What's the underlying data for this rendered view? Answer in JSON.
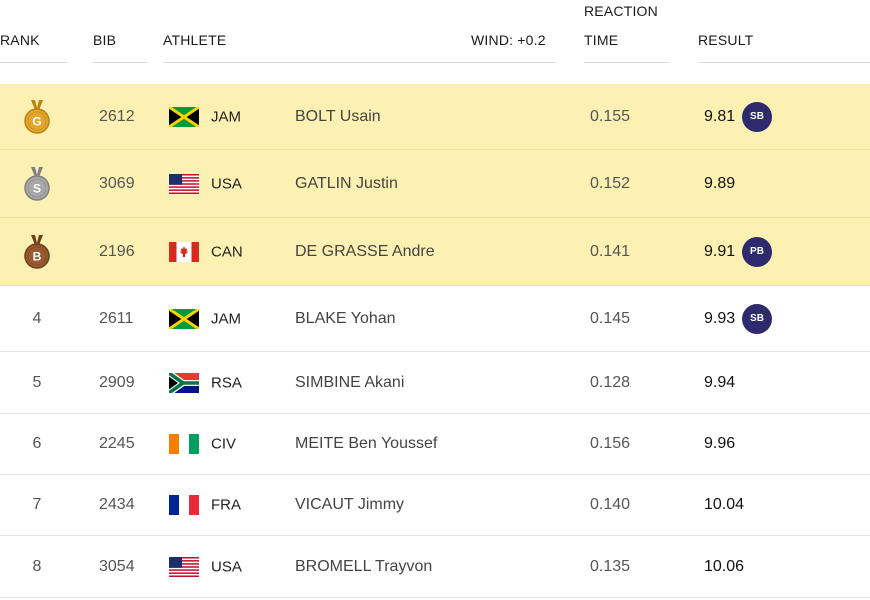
{
  "header": {
    "rank": "RANK",
    "bib": "BIB",
    "athlete": "ATHLETE",
    "wind": "WIND: +0.2",
    "reaction_line1": "REACTION",
    "reaction_line2": "TIME",
    "result": "RESULT"
  },
  "colors": {
    "medal_row_bg": "#fdf0b3",
    "badge_bg": "#2d2a6e",
    "gold": "#e3a52b",
    "silver": "#a8a8a8",
    "bronze": "#9a5a2f"
  },
  "rows": [
    {
      "rank": "",
      "medal": "gold",
      "medal_letter": "G",
      "bib": "2612",
      "flag": "jam-flag-icon",
      "country": "JAM",
      "athlete": "BOLT Usain",
      "reaction": "0.155",
      "result": "9.81",
      "badge": "SB"
    },
    {
      "rank": "",
      "medal": "silver",
      "medal_letter": "S",
      "bib": "3069",
      "flag": "usa-flag-icon",
      "country": "USA",
      "athlete": "GATLIN Justin",
      "reaction": "0.152",
      "result": "9.89",
      "badge": ""
    },
    {
      "rank": "",
      "medal": "bronze",
      "medal_letter": "B",
      "bib": "2196",
      "flag": "can-flag-icon",
      "country": "CAN",
      "athlete": "DE GRASSE Andre",
      "reaction": "0.141",
      "result": "9.91",
      "badge": "PB"
    },
    {
      "rank": "4",
      "medal": "",
      "medal_letter": "",
      "bib": "2611",
      "flag": "jam-flag-icon",
      "country": "JAM",
      "athlete": "BLAKE Yohan",
      "reaction": "0.145",
      "result": "9.93",
      "badge": "SB"
    },
    {
      "rank": "5",
      "medal": "",
      "medal_letter": "",
      "bib": "2909",
      "flag": "rsa-flag-icon",
      "country": "RSA",
      "athlete": "SIMBINE Akani",
      "reaction": "0.128",
      "result": "9.94",
      "badge": ""
    },
    {
      "rank": "6",
      "medal": "",
      "medal_letter": "",
      "bib": "2245",
      "flag": "civ-flag-icon",
      "country": "CIV",
      "athlete": "MEITE Ben Youssef",
      "reaction": "0.156",
      "result": "9.96",
      "badge": ""
    },
    {
      "rank": "7",
      "medal": "",
      "medal_letter": "",
      "bib": "2434",
      "flag": "fra-flag-icon",
      "country": "FRA",
      "athlete": "VICAUT Jimmy",
      "reaction": "0.140",
      "result": "10.04",
      "badge": ""
    },
    {
      "rank": "8",
      "medal": "",
      "medal_letter": "",
      "bib": "3054",
      "flag": "usa-flag-icon",
      "country": "USA",
      "athlete": "BROMELL Trayvon",
      "reaction": "0.135",
      "result": "10.06",
      "badge": ""
    }
  ]
}
